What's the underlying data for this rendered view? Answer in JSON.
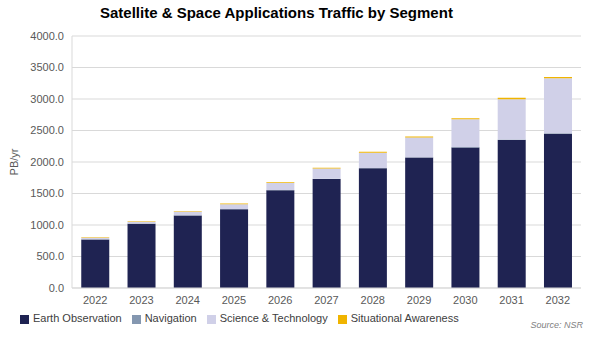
{
  "chart_data": {
    "type": "bar",
    "title": "Satellite & Space Applications Traffic by Segment",
    "y_label": "PB/yr",
    "source": "Source: NSR",
    "categories": [
      "2022",
      "2023",
      "2024",
      "2025",
      "2026",
      "2027",
      "2028",
      "2029",
      "2030",
      "2031",
      "2032"
    ],
    "series": [
      {
        "name": "Earth Observation",
        "color": "#1f2352",
        "values": [
          770,
          1020,
          1150,
          1250,
          1550,
          1730,
          1900,
          2070,
          2230,
          2350,
          2450
        ]
      },
      {
        "name": "Navigation",
        "color": "#8497b0",
        "values": [
          3,
          4,
          4,
          5,
          5,
          6,
          6,
          7,
          7,
          8,
          8
        ]
      },
      {
        "name": "Science & Technology",
        "color": "#d0d0e8",
        "values": [
          25,
          28,
          55,
          75,
          110,
          160,
          240,
          310,
          440,
          640,
          870
        ]
      },
      {
        "name": "Situational Awareness",
        "color": "#f0b400",
        "values": [
          7,
          8,
          10,
          10,
          12,
          14,
          15,
          16,
          18,
          20,
          22
        ]
      }
    ],
    "stacked": true,
    "grid": true,
    "legend": "bottom",
    "ylim": [
      0,
      4000
    ],
    "yticks": [
      {
        "value": 0,
        "label": "0.0"
      },
      {
        "value": 500,
        "label": "500.0"
      },
      {
        "value": 1000,
        "label": "1000.0"
      },
      {
        "value": 1500,
        "label": "1500.0"
      },
      {
        "value": 2000,
        "label": "2000.0"
      },
      {
        "value": 2500,
        "label": "2500.0"
      },
      {
        "value": 3000,
        "label": "3000.0"
      },
      {
        "value": 3500,
        "label": "3500.0"
      },
      {
        "value": 4000,
        "label": "4000.0"
      }
    ]
  }
}
